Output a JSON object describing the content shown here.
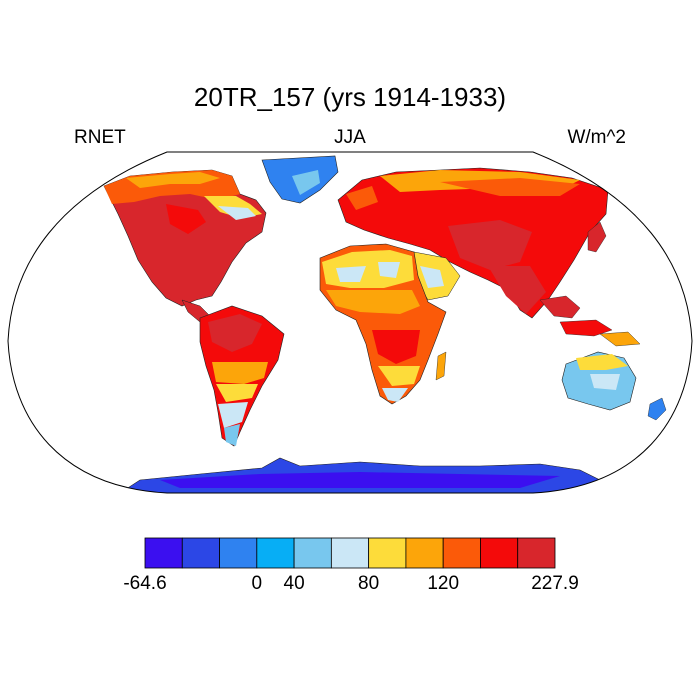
{
  "title": "20TR_157 (yrs 1914-1933)",
  "subtitle_left": "RNET",
  "subtitle_center": "JJA",
  "subtitle_right": "W/m^2",
  "projection": "robinson",
  "legend": {
    "colors": [
      "#3b0ff0",
      "#2c47e6",
      "#2f82f0",
      "#07aef5",
      "#78c7ee",
      "#cbe7f6",
      "#fddc3a",
      "#fca50a",
      "#fb5a09",
      "#f40a0a",
      "#d8262c"
    ],
    "tick_labels": [
      "-64.6",
      "0",
      "40",
      "80",
      "120",
      "227.9"
    ],
    "tick_boundaries": [
      0,
      3,
      4,
      6,
      8,
      11
    ]
  },
  "map_colors": {
    "ocean": "#ffffff",
    "hot": "#d8262c",
    "warm": "#f40a0a",
    "orange": "#fb5a09",
    "amber": "#fca50a",
    "yellow": "#fddc3a",
    "pale_blue": "#cbe7f6",
    "light_blue": "#78c7ee",
    "cyan": "#07aef5",
    "mid_blue": "#2f82f0",
    "blue": "#2c47e6",
    "deep_blue": "#3b0ff0"
  }
}
